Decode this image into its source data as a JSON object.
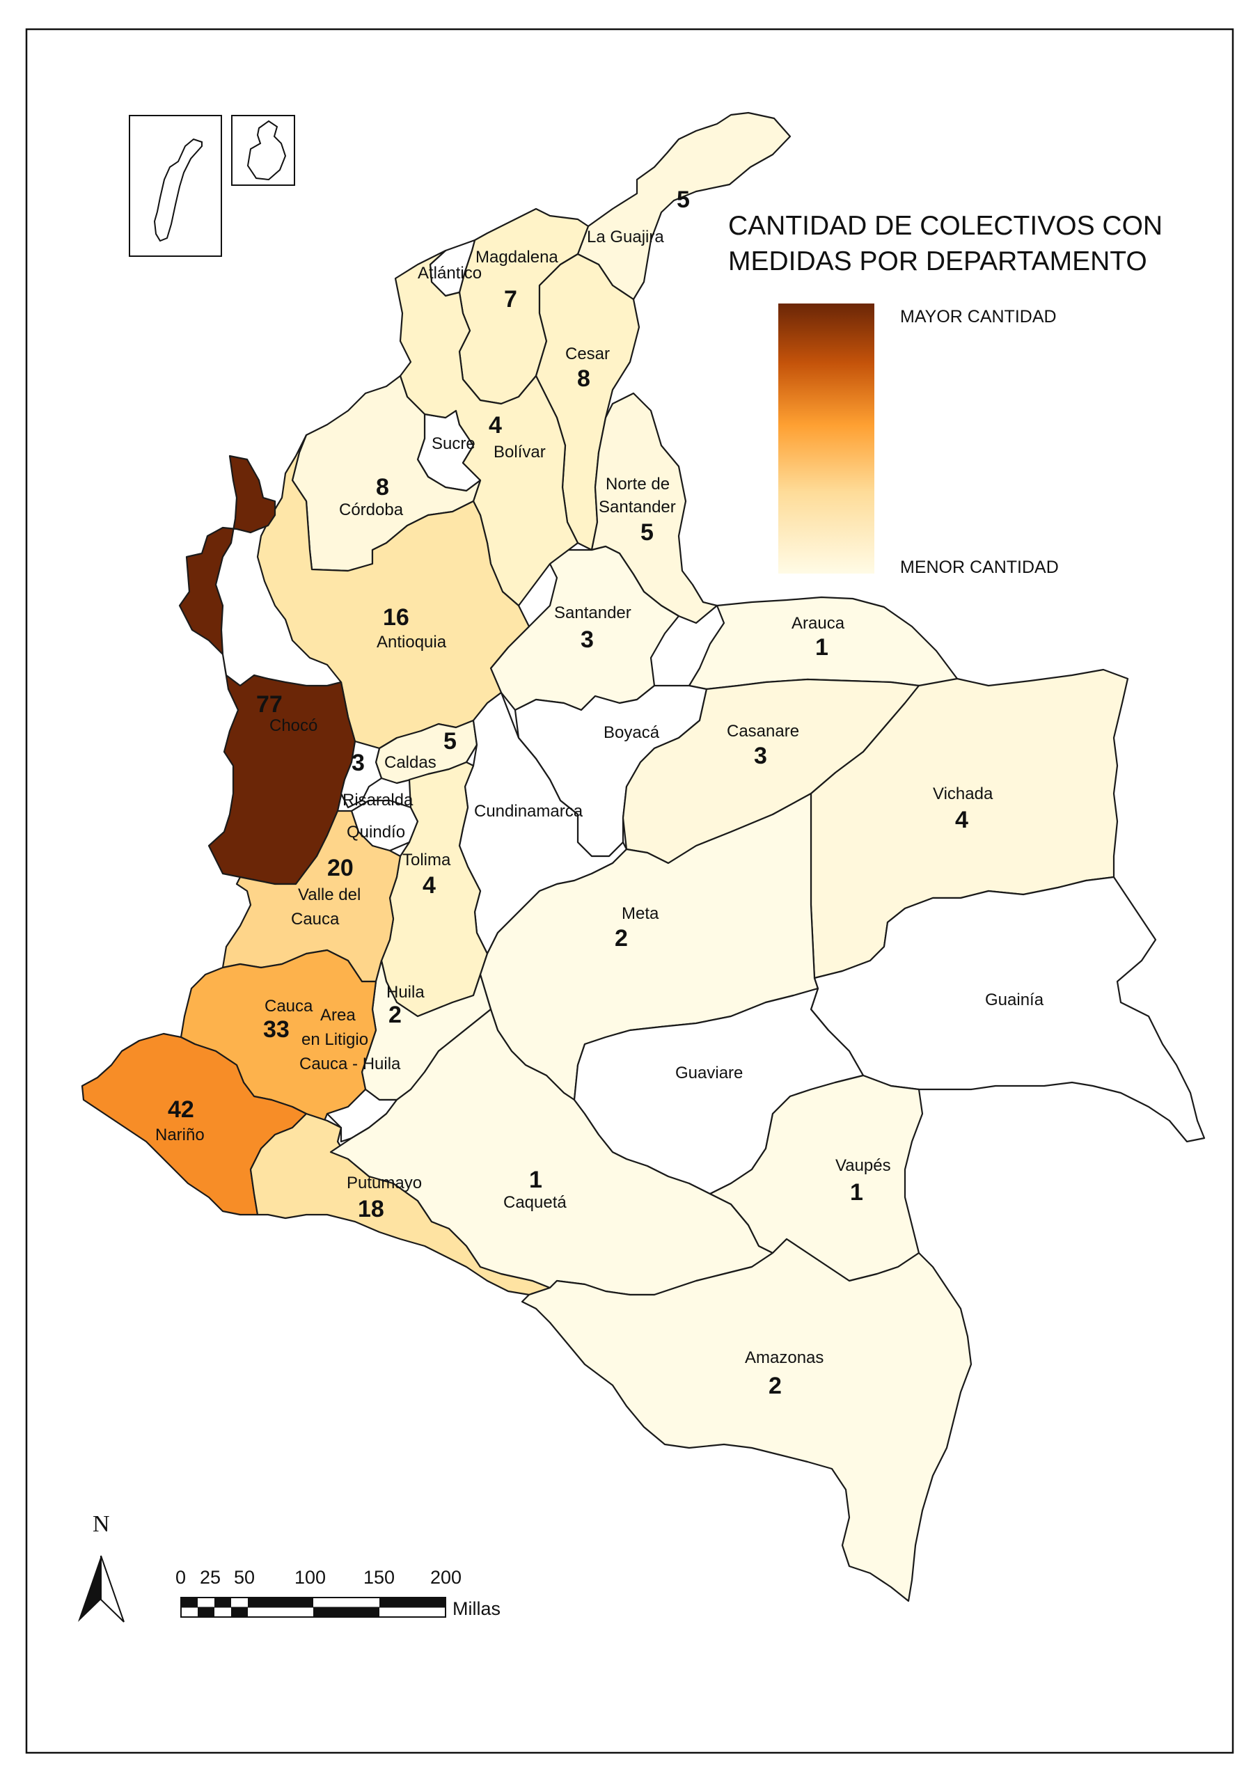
{
  "title": {
    "line1": "CANTIDAD DE COLECTIVOS CON",
    "line2": "MEDIDAS POR DEPARTAMENTO"
  },
  "legend": {
    "high_label": "MAYOR CANTIDAD",
    "low_label": "MENOR CANTIDAD",
    "color_high": "#6b2607",
    "color_mid": "#fea032",
    "color_low": "#fffbe6"
  },
  "departments": [
    {
      "id": "la-guajira",
      "name": "La Guajira",
      "value": "5"
    },
    {
      "id": "magdalena",
      "name": "Magdalena",
      "value": "7"
    },
    {
      "id": "atlantico",
      "name": "Atlántico",
      "value": ""
    },
    {
      "id": "cesar",
      "name": "Cesar",
      "value": "8"
    },
    {
      "id": "sucre",
      "name": "Sucre",
      "value": ""
    },
    {
      "id": "bolivar",
      "name": "Bolívar",
      "value": "4"
    },
    {
      "id": "cordoba",
      "name": "Córdoba",
      "value": "8"
    },
    {
      "id": "norte-de-santander",
      "name": "Norte de Santander",
      "value": "5"
    },
    {
      "id": "antioquia",
      "name": "Antioquia",
      "value": "16"
    },
    {
      "id": "santander",
      "name": "Santander",
      "value": "3"
    },
    {
      "id": "choco",
      "name": "Chocó",
      "value": "77"
    },
    {
      "id": "arauca",
      "name": "Arauca",
      "value": "1"
    },
    {
      "id": "boyaca",
      "name": "Boyacá",
      "value": ""
    },
    {
      "id": "casanare",
      "name": "Casanare",
      "value": "3"
    },
    {
      "id": "caldas",
      "name": "Caldas",
      "value": "5"
    },
    {
      "id": "risaralda",
      "name": "Risaralda",
      "value": "3"
    },
    {
      "id": "cundinamarca",
      "name": "Cundinamarca",
      "value": ""
    },
    {
      "id": "vichada",
      "name": "Vichada",
      "value": "4"
    },
    {
      "id": "quindio",
      "name": "Quindío",
      "value": ""
    },
    {
      "id": "tolima",
      "name": "Tolima",
      "value": "4"
    },
    {
      "id": "valle-del-cauca",
      "name": "Valle del Cauca",
      "value": "20"
    },
    {
      "id": "meta",
      "name": "Meta",
      "value": "2"
    },
    {
      "id": "huila",
      "name": "Huila",
      "value": "2"
    },
    {
      "id": "cauca",
      "name": "Cauca",
      "value": "33"
    },
    {
      "id": "area-litigio",
      "name": "Area en Litigio Cauca - Huila",
      "value": ""
    },
    {
      "id": "guainia",
      "name": "Guainía",
      "value": ""
    },
    {
      "id": "guaviare",
      "name": "Guaviare",
      "value": ""
    },
    {
      "id": "narino",
      "name": "Nariño",
      "value": "42"
    },
    {
      "id": "putumayo",
      "name": "Putumayo",
      "value": "18"
    },
    {
      "id": "caqueta",
      "name": "Caquetá",
      "value": "1"
    },
    {
      "id": "vaupes",
      "name": "Vaupés",
      "value": "1"
    },
    {
      "id": "amazonas",
      "name": "Amazonas",
      "value": "2"
    }
  ],
  "labels": {
    "la_guajira": "La Guajira",
    "magdalena": "Magdalena",
    "atlantico": "Atlántico",
    "cesar": "Cesar",
    "sucre": "Sucre",
    "bolivar": "Bolívar",
    "cordoba": "Córdoba",
    "norte_l1": "Norte de",
    "norte_l2": "Santander",
    "antioquia": "Antioquia",
    "santander": "Santander",
    "choco": "Chocó",
    "arauca": "Arauca",
    "boyaca": "Boyacá",
    "casanare": "Casanare",
    "caldas": "Caldas",
    "risaralda": "Risaralda",
    "cundinamarca": "Cundinamarca",
    "vichada": "Vichada",
    "quindio": "Quindío",
    "tolima": "Tolima",
    "valle_l1": "Valle del",
    "valle_l2": "Cauca",
    "meta": "Meta",
    "huila": "Huila",
    "cauca": "Cauca",
    "litigio_l1": "Area",
    "litigio_l2": "en Litigio",
    "litigio_l3": "Cauca - Huila",
    "guainia": "Guainía",
    "guaviare": "Guaviare",
    "narino": "Nariño",
    "putumayo": "Putumayo",
    "caqueta": "Caquetá",
    "vaupes": "Vaupés",
    "amazonas": "Amazonas"
  },
  "values": {
    "la_guajira": "5",
    "magdalena": "7",
    "cesar": "8",
    "bolivar": "4",
    "cordoba": "8",
    "norte": "5",
    "antioquia": "16",
    "santander": "3",
    "choco": "77",
    "arauca": "1",
    "casanare": "3",
    "caldas": "5",
    "risaralda": "3",
    "vichada": "4",
    "tolima": "4",
    "valle": "20",
    "meta": "2",
    "huila": "2",
    "cauca": "33",
    "narino": "42",
    "putumayo": "18",
    "caqueta": "1",
    "vaupes": "1",
    "amazonas": "2"
  },
  "north_arrow": {
    "label": "N"
  },
  "scale_bar": {
    "ticks": [
      "0",
      "25",
      "50",
      "100",
      "150",
      "200"
    ],
    "unit": "Millas"
  }
}
